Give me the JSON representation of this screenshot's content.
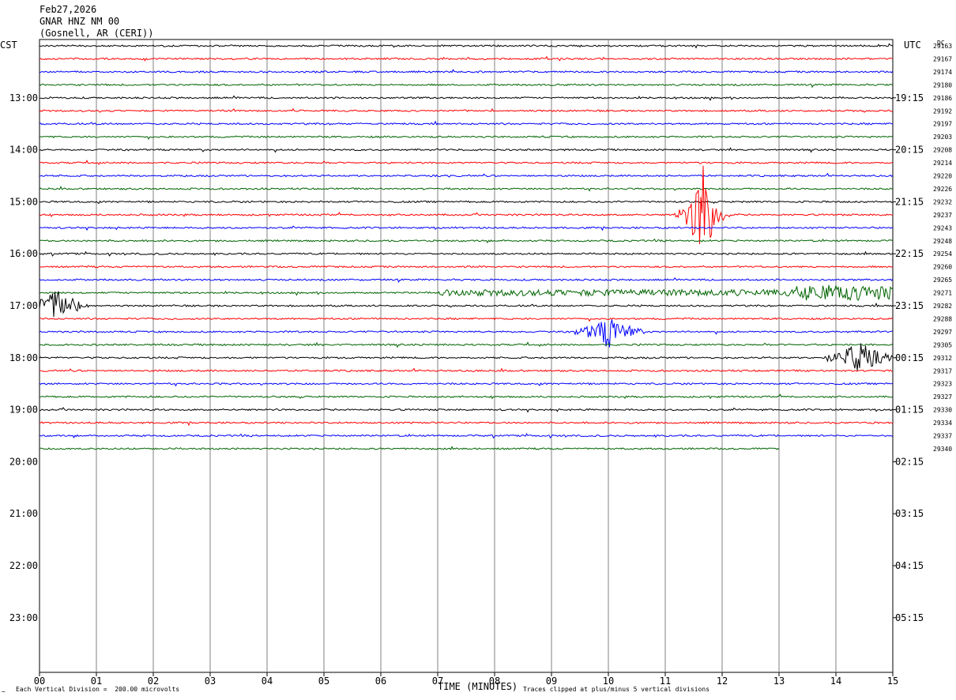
{
  "header": {
    "date": "Feb27,2026",
    "station": "GNAR HNZ NM 00",
    "location": "(Gosnell, AR (CERI))"
  },
  "left_tz": "CST",
  "right_tz": "UTC",
  "dc_label": "DC",
  "footer": {
    "vertical_division": "Each Vertical Division =  200.00 microvolts",
    "xlabel": "TIME (MINUTES)",
    "clip_note": "Traces clipped at plus/minus 5 vertical divisions"
  },
  "colors": {
    "trace_cycle": [
      "#000000",
      "#ff0000",
      "#0000ff",
      "#006400"
    ],
    "grid": "#808080"
  },
  "chart_data": {
    "type": "line",
    "title": "GNAR HNZ NM 00",
    "xlabel": "TIME (MINUTES)",
    "xlim": [
      0,
      15
    ],
    "x_ticks": [
      "00",
      "01",
      "02",
      "03",
      "04",
      "05",
      "06",
      "07",
      "08",
      "09",
      "10",
      "11",
      "12",
      "13",
      "14",
      "15"
    ],
    "left_time_labels": [
      "13:00",
      "14:00",
      "15:00",
      "16:00",
      "17:00",
      "18:00",
      "19:00",
      "20:00",
      "21:00",
      "22:00",
      "23:00"
    ],
    "right_time_labels": [
      "19:15",
      "20:15",
      "21:15",
      "22:15",
      "23:15",
      "00:15",
      "01:15",
      "02:15",
      "03:15",
      "04:15",
      "05:15"
    ],
    "dc_offsets": [
      29163,
      29167,
      29174,
      29180,
      29186,
      29192,
      29197,
      29203,
      29208,
      29214,
      29220,
      29226,
      29232,
      29237,
      29243,
      29248,
      29254,
      29260,
      29265,
      29271,
      29282,
      29288,
      29297,
      29305,
      29312,
      29317,
      29323,
      29327,
      29330,
      29334,
      29337,
      29340
    ],
    "traces_count": 32,
    "last_trace_end_minute": 13,
    "events": [
      {
        "trace": 13,
        "minute": 11.65,
        "type": "large event"
      },
      {
        "trace": 20,
        "minute": 0.3,
        "type": "burst"
      },
      {
        "trace": 22,
        "minute": 10.0,
        "type": "burst"
      },
      {
        "trace": 19,
        "minute": 14.5,
        "type": "noise"
      },
      {
        "trace": 24,
        "minute": 14.4,
        "type": "burst"
      }
    ]
  }
}
